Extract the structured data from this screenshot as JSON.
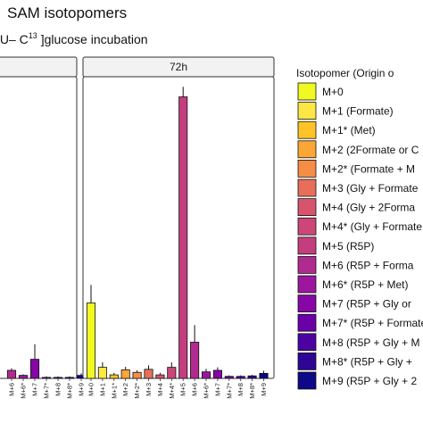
{
  "chart_data": {
    "type": "bar",
    "title": "SAM isotopomers",
    "subtitle_visible_prefix": "[U– C",
    "subtitle_superscript": "13",
    "subtitle_visible_suffix": " ]glucose incubation",
    "categories": [
      "M+0",
      "M+1",
      "M+1*",
      "M+2",
      "M+2*",
      "M+3",
      "M+4",
      "M+4*",
      "M+5",
      "M+6",
      "M+6*",
      "M+7",
      "M+7*",
      "M+8",
      "M+8*",
      "M+9"
    ],
    "facets": [
      {
        "label": "",
        "partial": true,
        "visible_categories": [
          "M+6",
          "M+6*",
          "M+7",
          "M+7*",
          "M+8",
          "M+8*",
          "M+9"
        ],
        "values": [
          0.8,
          0.3,
          1.9,
          0.1,
          0.1,
          0.1,
          0.3
        ],
        "errors": [
          0.2,
          0.1,
          1.5,
          0.1,
          0.1,
          0.1,
          0.2
        ]
      },
      {
        "label": "72h",
        "partial": false,
        "values": [
          7.5,
          1.1,
          0.35,
          0.85,
          0.6,
          0.9,
          0.35,
          1.1,
          28.0,
          3.6,
          0.65,
          0.8,
          0.2,
          0.2,
          0.25,
          0.5
        ],
        "errors": [
          1.8,
          0.5,
          0.2,
          0.3,
          0.2,
          0.4,
          0.2,
          0.5,
          1.0,
          1.7,
          0.3,
          0.3,
          0.1,
          0.1,
          0.1,
          0.25
        ]
      }
    ],
    "ylim": [
      0,
      30
    ],
    "colors": [
      "#f0f921",
      "#fde745",
      "#fdc328",
      "#fca636",
      "#f68d45",
      "#e76f5a",
      "#d6556d",
      "#cc4778",
      "#c43e7f",
      "#b12a90",
      "#9c179e",
      "#8606a6",
      "#6a00a8",
      "#4c02a1",
      "#2e0595",
      "#0d0887"
    ],
    "legend": {
      "title": "Isotopomer (Origin o",
      "position": "right",
      "entries": [
        "M+0",
        "M+1 (Formate)",
        "M+1* (Met)",
        "M+2 (2Formate or C",
        "M+2* (Formate + M",
        "M+3 (Gly + Formate",
        "M+4 (Gly + 2Forma",
        "M+4* (Gly + Formate",
        "M+5 (R5P)",
        "M+6 (R5P + Forma",
        "M+6* (R5P + Met)",
        "M+7 (R5P + Gly or",
        "M+7* (R5P + Formate",
        "M+8 (R5P + Gly + M",
        "M+8* (R5P + Gly +",
        "M+9 (R5P + Gly + 2"
      ]
    },
    "grid": false
  }
}
